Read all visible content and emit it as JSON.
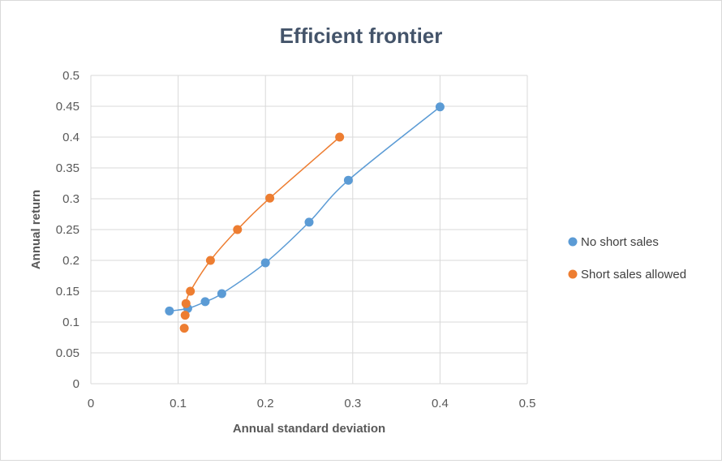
{
  "chart_data": {
    "type": "scatter",
    "title": "Efficient frontier",
    "xlabel": "Annual standard deviation",
    "ylabel": "Annual return",
    "xlim": [
      0,
      0.5
    ],
    "ylim": [
      0,
      0.5
    ],
    "x_ticks": [
      "0",
      "0.1",
      "0.2",
      "0.3",
      "0.4",
      "0.5"
    ],
    "y_ticks": [
      "0",
      "0.05",
      "0.1",
      "0.15",
      "0.2",
      "0.25",
      "0.3",
      "0.35",
      "0.4",
      "0.45",
      "0.5"
    ],
    "grid": true,
    "legend_position": "right",
    "series": [
      {
        "name": "No short sales",
        "color": "#5b9bd5",
        "points": [
          [
            0.09,
            0.118
          ],
          [
            0.111,
            0.122
          ],
          [
            0.131,
            0.133
          ],
          [
            0.15,
            0.146
          ],
          [
            0.2,
            0.196
          ],
          [
            0.25,
            0.262
          ],
          [
            0.295,
            0.33
          ],
          [
            0.4,
            0.449
          ]
        ]
      },
      {
        "name": "Short sales allowed",
        "color": "#ed7d31",
        "points": [
          [
            0.107,
            0.09
          ],
          [
            0.108,
            0.111
          ],
          [
            0.109,
            0.13
          ],
          [
            0.114,
            0.15
          ],
          [
            0.137,
            0.2
          ],
          [
            0.168,
            0.25
          ],
          [
            0.205,
            0.301
          ],
          [
            0.285,
            0.4
          ]
        ]
      }
    ]
  }
}
